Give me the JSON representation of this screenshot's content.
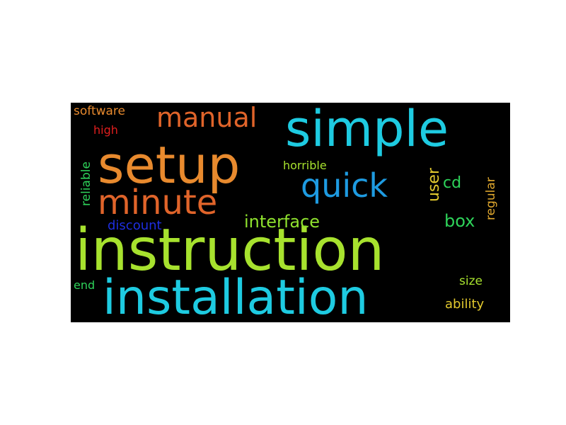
{
  "words": [
    {
      "text": "instruction",
      "color": "#a7e22e",
      "weight": 1.0
    },
    {
      "text": "installation",
      "color": "#1ecbe1",
      "weight": 0.83
    },
    {
      "text": "setup",
      "color": "#e88a2e",
      "weight": 0.82
    },
    {
      "text": "simple",
      "color": "#1ecbe1",
      "weight": 0.8
    },
    {
      "text": "minute",
      "color": "#e0642a",
      "weight": 0.56
    },
    {
      "text": "quick",
      "color": "#1e9be1",
      "weight": 0.52
    },
    {
      "text": "manual",
      "color": "#e0642a",
      "weight": 0.45
    },
    {
      "text": "interface",
      "color": "#8fe22e",
      "weight": 0.28
    },
    {
      "text": "box",
      "color": "#2ed35a",
      "weight": 0.28
    },
    {
      "text": "cd",
      "color": "#2ed35a",
      "weight": 0.24
    },
    {
      "text": "user",
      "color": "#e2c92e",
      "weight": 0.24
    },
    {
      "text": "discount",
      "color": "#1e2ee1",
      "weight": 0.2
    },
    {
      "text": "software",
      "color": "#e88a2e",
      "weight": 0.2
    },
    {
      "text": "reliable",
      "color": "#2ed35a",
      "weight": 0.2
    },
    {
      "text": "high",
      "color": "#e11e1e",
      "weight": 0.18
    },
    {
      "text": "horrible",
      "color": "#a7e22e",
      "weight": 0.18
    },
    {
      "text": "regular",
      "color": "#e2a92e",
      "weight": 0.2
    },
    {
      "text": "end",
      "color": "#2ed35a",
      "weight": 0.18
    },
    {
      "text": "size",
      "color": "#a7e22e",
      "weight": 0.18
    },
    {
      "text": "ability",
      "color": "#e2c92e",
      "weight": 0.2
    }
  ]
}
